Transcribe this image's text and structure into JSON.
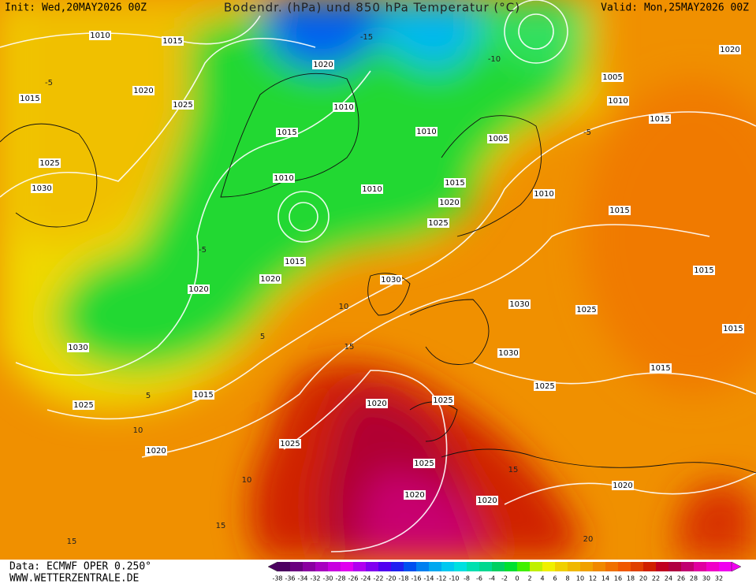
{
  "header": {
    "init": "Init: Wed,20MAY2026 00Z",
    "title": "Bodendr. (hPa) und 850 hPa Temperatur (°C)",
    "valid": "Valid: Mon,25MAY2026 00Z"
  },
  "footer": {
    "source": "Data: ECMWF OPER 0.250°",
    "website": "WWW.WETTERZENTRALE.DE"
  },
  "colorbar": {
    "values": [
      -38,
      -36,
      -34,
      -32,
      -30,
      -28,
      -26,
      -24,
      -22,
      -20,
      -18,
      -16,
      -14,
      -12,
      -10,
      -8,
      -6,
      -4,
      -2,
      0,
      2,
      4,
      6,
      8,
      10,
      12,
      14,
      16,
      18,
      20,
      22,
      24,
      26,
      28,
      30,
      32
    ],
    "colors": [
      "#4b0060",
      "#6a007f",
      "#8a00a0",
      "#a800c0",
      "#c800e0",
      "#e000f0",
      "#b000f0",
      "#8000f0",
      "#5000f0",
      "#2020f0",
      "#0050f0",
      "#0080f0",
      "#00a8f0",
      "#00c8f0",
      "#00e0e0",
      "#00e0b0",
      "#00d890",
      "#00d060",
      "#00e030",
      "#40f000",
      "#c0f000",
      "#f0f000",
      "#f0d000",
      "#f0b800",
      "#f0a000",
      "#f08800",
      "#f07000",
      "#f05800",
      "#e04000",
      "#d02000",
      "#c00020",
      "#b00040",
      "#c00070",
      "#e000a0",
      "#f000c8",
      "#f000f0"
    ]
  },
  "isobar_labels": [
    "1010",
    "1015",
    "1020",
    "1015",
    "1025",
    "1025",
    "1030",
    "1020",
    "1010",
    "1015",
    "1010",
    "1010",
    "1010",
    "1005",
    "1005",
    "1010",
    "1015",
    "1020",
    "1010",
    "1015",
    "1020",
    "1025",
    "1015",
    "1015",
    "1020",
    "1030",
    "1020",
    "1030",
    "1025",
    "1015",
    "1015",
    "1030",
    "1030",
    "1015",
    "1025",
    "1015",
    "1025",
    "1020",
    "1025",
    "1025",
    "1020",
    "1025",
    "1020",
    "1020",
    "1020"
  ],
  "contour_labels": [
    "-15",
    "-10",
    "-5",
    "-5",
    "5",
    "10",
    "15",
    "10",
    "10",
    "15",
    "15",
    "15",
    "20",
    "-5",
    "5"
  ]
}
